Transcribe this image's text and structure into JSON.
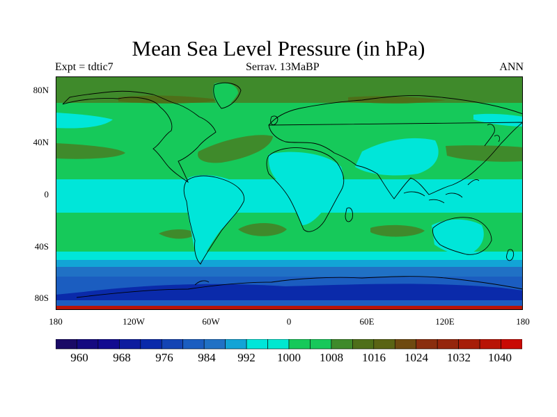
{
  "title": "Mean Sea Level Pressure (in hPa)",
  "left_label": "Expt = tdtic7",
  "center_label": "Serrav.   13MaBP",
  "right_label": "ANN",
  "y_ticks": [
    "80N",
    "40N",
    "0",
    "40S",
    "80S"
  ],
  "x_ticks": [
    "180",
    "120W",
    "60W",
    "0",
    "60E",
    "120E",
    "180"
  ],
  "colorbar": {
    "labels": [
      "960",
      "968",
      "976",
      "984",
      "992",
      "1000",
      "1008",
      "1016",
      "1024",
      "1032",
      "1040"
    ],
    "colors": [
      "#1a0a66",
      "#150a80",
      "#120b90",
      "#0d1c9e",
      "#0a2aaa",
      "#1444b4",
      "#1b5dc0",
      "#2071c5",
      "#12a4d6",
      "#00e6d9",
      "#00e8d0",
      "#16c95a",
      "#18c85a",
      "#3f8a2b",
      "#4e6f19",
      "#5a6414",
      "#6e4a10",
      "#8a2e0e",
      "#95260c",
      "#a61d08",
      "#b81406",
      "#c90a04"
    ]
  },
  "map_colors": {
    "deep_low": "#0a2aaa",
    "low": "#1b5dc0",
    "mid_low": "#2071c5",
    "light_blue": "#12a4d6",
    "cyan": "#00e6d9",
    "green": "#16c95a",
    "olive": "#3f8a2b",
    "dark_olive": "#4e6f19",
    "high_edge": "#b81406"
  }
}
